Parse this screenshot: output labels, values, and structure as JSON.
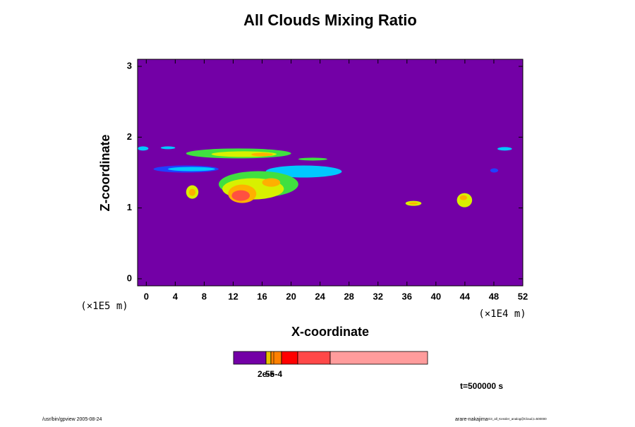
{
  "chart_data": {
    "type": "contour",
    "title": "All Clouds Mixing Ratio",
    "xlabel": "X-coordinate",
    "ylabel": "Z-coordinate",
    "xunit": "(×1E4 m)",
    "yunit": "(×1E5 m)",
    "xlim": [
      -1.2,
      52
    ],
    "ylim": [
      -0.1,
      3.1
    ],
    "xticks": [
      0,
      4,
      8,
      12,
      16,
      20,
      24,
      28,
      32,
      36,
      40,
      44,
      48,
      52
    ],
    "yticks": [
      0,
      1,
      2,
      3
    ],
    "background": "#7300a6",
    "patches": [
      {
        "x": [
          -1.2,
          0.3
        ],
        "z": [
          1.81,
          1.87
        ],
        "color": "#00c8ff"
      },
      {
        "x": [
          2,
          4
        ],
        "z": [
          1.83,
          1.87
        ],
        "color": "#00c8ff"
      },
      {
        "x": [
          5.5,
          20
        ],
        "z": [
          1.7,
          1.84
        ],
        "color": "#40e040"
      },
      {
        "x": [
          9,
          18
        ],
        "z": [
          1.72,
          1.8
        ],
        "color": "#d8f000"
      },
      {
        "x": [
          14.5,
          17.5
        ],
        "z": [
          1.73,
          1.78
        ],
        "color": "#ffb000"
      },
      {
        "x": [
          21,
          25
        ],
        "z": [
          1.67,
          1.71
        ],
        "color": "#40e040"
      },
      {
        "x": [
          1,
          10
        ],
        "z": [
          1.5,
          1.6
        ],
        "color": "#2040ff"
      },
      {
        "x": [
          3,
          9.5
        ],
        "z": [
          1.52,
          1.58
        ],
        "color": "#00c8ff"
      },
      {
        "x": [
          16.5,
          27
        ],
        "z": [
          1.43,
          1.6
        ],
        "color": "#00c8ff"
      },
      {
        "x": [
          10,
          21
        ],
        "z": [
          1.15,
          1.52
        ],
        "color": "#40e040"
      },
      {
        "x": [
          10.5,
          19
        ],
        "z": [
          1.12,
          1.42
        ],
        "color": "#d8f000"
      },
      {
        "x": [
          11.3,
          15.2
        ],
        "z": [
          1.07,
          1.33
        ],
        "color": "#ffb000"
      },
      {
        "x": [
          11.8,
          14.3
        ],
        "z": [
          1.1,
          1.25
        ],
        "color": "#ff5040"
      },
      {
        "x": [
          16,
          18.5
        ],
        "z": [
          1.3,
          1.42
        ],
        "color": "#ffb000"
      },
      {
        "x": [
          5.5,
          7.2
        ],
        "z": [
          1.13,
          1.32
        ],
        "color": "#d8f000"
      },
      {
        "x": [
          5.9,
          6.8
        ],
        "z": [
          1.17,
          1.27
        ],
        "color": "#ffb000"
      },
      {
        "x": [
          35.8,
          38
        ],
        "z": [
          1.03,
          1.1
        ],
        "color": "#d8f000"
      },
      {
        "x": [
          36.3,
          37.5
        ],
        "z": [
          1.05,
          1.08
        ],
        "color": "#ffb000"
      },
      {
        "x": [
          42.9,
          45
        ],
        "z": [
          1.01,
          1.21
        ],
        "color": "#d8f000"
      },
      {
        "x": [
          43.3,
          44.3
        ],
        "z": [
          1.11,
          1.18
        ],
        "color": "#ffb000"
      },
      {
        "x": [
          48.5,
          50.5
        ],
        "z": [
          1.81,
          1.86
        ],
        "color": "#00c8ff"
      },
      {
        "x": [
          47.5,
          48.6
        ],
        "z": [
          1.5,
          1.56
        ],
        "color": "#2040ff"
      }
    ],
    "colorbar": {
      "colors": [
        "#7300a6",
        "#e8c000",
        "#ff8000",
        "#ff0000",
        "#ff4848",
        "#ff9c9c"
      ],
      "ticks": [
        {
          "value": 2e-05,
          "label": "2e-5"
        },
        {
          "value": 0.0005,
          "label": "5e-4"
        }
      ]
    },
    "annotation": "t=500000 s",
    "footer_left": "/usr/bin/gpview 2005-08-24",
    "footer_right": "arare-nakajima",
    "footer_right_small": "G3_all_Kessler_analog@Cloud,t=500000"
  }
}
